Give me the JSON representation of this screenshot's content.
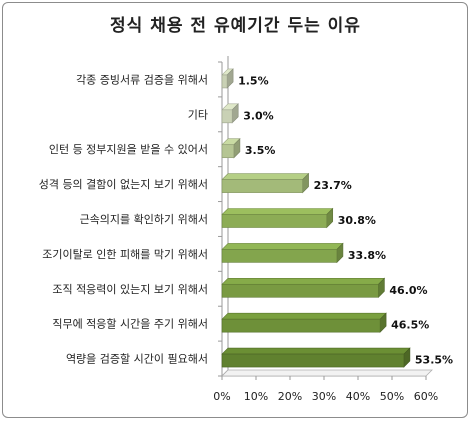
{
  "chart_data": {
    "type": "bar",
    "orientation": "horizontal",
    "title": "정식 채용 전 유예기간 두는 이유",
    "categories": [
      "각종 증빙서류 검증을 위해서",
      "기타",
      "인턴 등 정부지원을 받을 수 있어서",
      "성격 등의 결함이 없는지 보기 위해서",
      "근속의지를 확인하기 위해서",
      "조기이탈로 인한 피해를 막기 위해서",
      "조직 적응력이 있는지 보기 위해서",
      "직무에 적응할 시간을 주기 위해서",
      "역량을 검증할 시간이 필요해서"
    ],
    "values": [
      1.5,
      3.0,
      3.5,
      23.7,
      30.8,
      33.8,
      46.0,
      46.5,
      53.5
    ],
    "value_labels": [
      "1.5%",
      "3.0%",
      "3.5%",
      "23.7%",
      "30.8%",
      "33.8%",
      "46.0%",
      "46.5%",
      "53.5%"
    ],
    "bar_colors": [
      "#dfe8c9",
      "#dfe8c9",
      "#c9dba3",
      "#b5cf86",
      "#9cbf5e",
      "#92b756",
      "#86ab49",
      "#7aa03f",
      "#6b8f34"
    ],
    "xlim": [
      0,
      60
    ],
    "xticks": [
      "0%",
      "10%",
      "20%",
      "30%",
      "40%",
      "50%",
      "60%"
    ],
    "grid": false,
    "legend": "none"
  }
}
